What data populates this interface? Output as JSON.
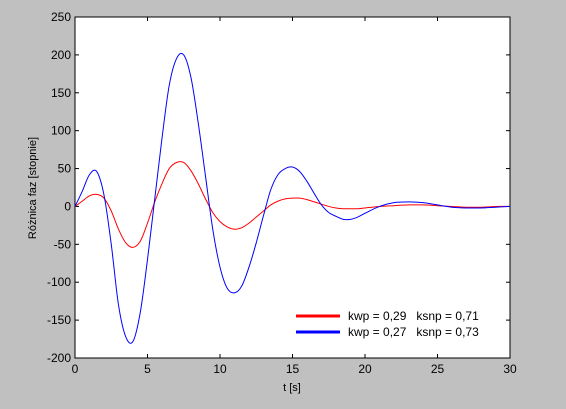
{
  "figure": {
    "background": "#c0c0c0",
    "axes_background": "#ffffff"
  },
  "chart_data": {
    "type": "line",
    "xlabel": "t [s]",
    "ylabel": "Różnica faz [stopnie]",
    "xlim": [
      0,
      30
    ],
    "ylim": [
      -200,
      250
    ],
    "xticks": [
      0,
      5,
      10,
      15,
      20,
      25,
      30
    ],
    "yticks": [
      -200,
      -150,
      -100,
      -50,
      0,
      50,
      100,
      150,
      200,
      250
    ],
    "grid": false,
    "legend_position": "bottom-right",
    "series": [
      {
        "name": "kwp = 0,29   ksnp = 0,71",
        "color": "#ff0000",
        "x": [
          0,
          0.5,
          1,
          1.5,
          2,
          2.5,
          3,
          3.5,
          4,
          4.5,
          5,
          5.5,
          6,
          6.5,
          7,
          7.5,
          8,
          8.5,
          9,
          9.5,
          10,
          10.5,
          11,
          11.5,
          12,
          12.5,
          13,
          13.5,
          14,
          14.5,
          15,
          15.5,
          16,
          16.5,
          17,
          17.5,
          18,
          18.5,
          19,
          19.5,
          20,
          21,
          22,
          23,
          24,
          25,
          26,
          27,
          28,
          29,
          30
        ],
        "values": [
          0,
          7,
          14,
          16,
          11,
          -6,
          -30,
          -48,
          -54,
          -46,
          -22,
          6,
          30,
          50,
          58,
          58,
          47,
          30,
          10,
          -8,
          -20,
          -27,
          -30,
          -28,
          -22,
          -14,
          -6,
          2,
          7,
          10,
          11,
          11,
          9,
          6,
          3,
          0,
          -2,
          -3,
          -3,
          -3,
          -2,
          0,
          1,
          2,
          2,
          1,
          0,
          -1,
          -1,
          0,
          0
        ]
      },
      {
        "name": "kwp = 0,27   ksnp = 0,73",
        "color": "#0000ff",
        "x": [
          0,
          0.5,
          1,
          1.5,
          2,
          2.5,
          3,
          3.5,
          4,
          4.5,
          5,
          5.5,
          6,
          6.5,
          7,
          7.5,
          8,
          8.5,
          9,
          9.5,
          10,
          10.5,
          11,
          11.5,
          12,
          12.5,
          13,
          13.5,
          14,
          14.5,
          15,
          15.5,
          16,
          16.5,
          17,
          17.5,
          18,
          18.5,
          19,
          19.5,
          20,
          21,
          22,
          23,
          24,
          25,
          26,
          27,
          28,
          29,
          30
        ],
        "values": [
          0,
          20,
          42,
          46,
          15,
          -50,
          -130,
          -172,
          -178,
          -140,
          -70,
          10,
          90,
          160,
          195,
          200,
          170,
          110,
          40,
          -30,
          -80,
          -108,
          -114,
          -105,
          -80,
          -48,
          -12,
          22,
          42,
          50,
          52,
          46,
          33,
          17,
          2,
          -8,
          -13,
          -17,
          -17,
          -14,
          -9,
          0,
          5,
          6,
          5,
          2,
          -1,
          -2,
          -2,
          -1,
          0
        ]
      }
    ]
  }
}
